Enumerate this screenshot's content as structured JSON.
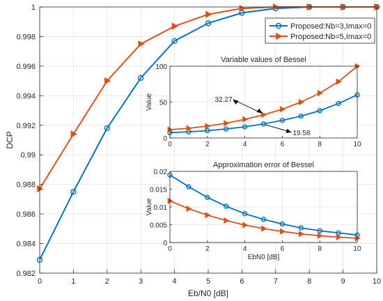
{
  "colors": {
    "series1": "#0072BD",
    "series2": "#D95319",
    "grid": "#e3e3e3",
    "axis": "#262626"
  },
  "chart_data": [
    {
      "type": "line",
      "title": "",
      "xlabel": "Eb/N0 [dB]",
      "ylabel": "DCP",
      "xlim": [
        0,
        10
      ],
      "ylim": [
        0.982,
        1
      ],
      "xticks": [
        0,
        1,
        2,
        3,
        4,
        5,
        6,
        7,
        8,
        9,
        10
      ],
      "yticks": [
        0.982,
        0.984,
        0.986,
        0.988,
        0.99,
        0.992,
        0.994,
        0.996,
        0.998,
        1
      ],
      "ytick_labels": [
        "0.982",
        "0.984",
        "0.986",
        "0.988",
        "0.99",
        "0.992",
        "0.994",
        "0.996",
        "0.998",
        "1"
      ],
      "grid": true,
      "legend_position": "top-right",
      "x": [
        0,
        1,
        2,
        3,
        4,
        5,
        6,
        7,
        8,
        9,
        10
      ],
      "series": [
        {
          "name": "Proposed:Nb=3,Imax=0",
          "marker": "circle",
          "values": [
            0.9829,
            0.9875,
            0.9918,
            0.9952,
            0.9977,
            0.9989,
            0.9996,
            0.9999,
            1.0,
            1.0,
            1.0
          ]
        },
        {
          "name": "Proposed:Nb=5,Imax=0",
          "marker": "triangle-right",
          "values": [
            0.9877,
            0.9914,
            0.995,
            0.9975,
            0.9987,
            0.9995,
            0.9999,
            1.0,
            1.0,
            1.0,
            1.0
          ]
        }
      ]
    },
    {
      "type": "line",
      "title": "Variable values of Bessel",
      "xlabel": "",
      "ylabel": "Value",
      "xlim": [
        0,
        10
      ],
      "ylim": [
        0,
        100
      ],
      "xticks": [
        0,
        2,
        4,
        6,
        8,
        10
      ],
      "yticks": [
        0,
        50,
        100
      ],
      "ytick_labels": [
        "0",
        "50",
        "100"
      ],
      "grid": true,
      "x": [
        0,
        1,
        2,
        3,
        4,
        5,
        6,
        7,
        8,
        9,
        10
      ],
      "series": [
        {
          "marker": "circle",
          "values": [
            7.5,
            8.5,
            10.2,
            12.5,
            15.5,
            19.58,
            24.5,
            30.5,
            38.0,
            48.0,
            60.0
          ]
        },
        {
          "marker": "triangle-right",
          "values": [
            11.5,
            13.5,
            16.5,
            20.5,
            26.0,
            32.27,
            40.0,
            50.0,
            62.5,
            78.5,
            100.0
          ]
        }
      ],
      "annotations": [
        {
          "text": "32.27",
          "x": 5,
          "y": 32.27
        },
        {
          "text": "19.58",
          "x": 5,
          "y": 19.58
        }
      ]
    },
    {
      "type": "line",
      "title": "Approximation error of Bessel",
      "xlabel": "EbN0 [dB]",
      "ylabel": "Value",
      "xlim": [
        0,
        10
      ],
      "ylim": [
        0,
        0.02
      ],
      "xticks": [
        0,
        2,
        4,
        6,
        8,
        10
      ],
      "yticks": [
        0,
        0.005,
        0.01,
        0.015,
        0.02
      ],
      "ytick_labels": [
        "0",
        "0.005",
        "0.01",
        "0.015",
        "0.02"
      ],
      "grid": true,
      "x": [
        0,
        1,
        2,
        3,
        4,
        5,
        6,
        7,
        8,
        9,
        10
      ],
      "series": [
        {
          "marker": "circle",
          "values": [
            0.019,
            0.0157,
            0.0127,
            0.0102,
            0.0081,
            0.0065,
            0.0052,
            0.0041,
            0.0033,
            0.0027,
            0.0021
          ]
        },
        {
          "marker": "triangle-right",
          "values": [
            0.0117,
            0.0095,
            0.0077,
            0.0062,
            0.0049,
            0.0039,
            0.0031,
            0.0024,
            0.0019,
            0.0015,
            0.0012
          ]
        }
      ]
    }
  ]
}
